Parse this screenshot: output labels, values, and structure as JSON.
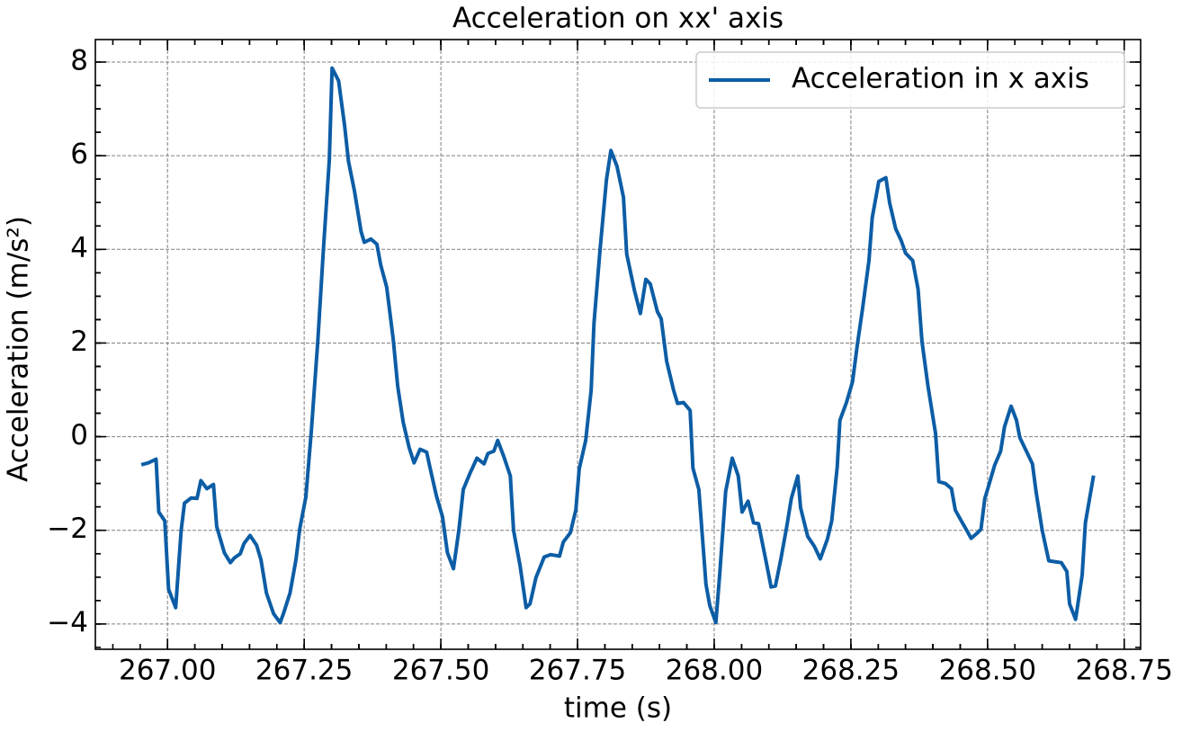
{
  "chart_data": {
    "type": "line",
    "title": "Acceleration on xx' axis",
    "x_label": "time (s)",
    "y_label": "Acceleration (m/s²)",
    "legend": "upper right",
    "grid": true,
    "xlim": [
      266.868,
      268.78
    ],
    "ylim": [
      -4.54,
      8.48
    ],
    "xticks": [
      {
        "value": 267,
        "label": "267.00"
      },
      267.25,
      {
        "value": 267.5,
        "label": "267.50"
      },
      267.75,
      {
        "value": 268,
        "label": "268.00"
      },
      268.25,
      {
        "value": 268.5,
        "label": "268.50"
      },
      268.75
    ],
    "yticks": [
      {
        "value": -4,
        "label": "−4"
      },
      {
        "value": -2,
        "label": "−2"
      },
      0,
      2,
      4,
      6,
      8
    ],
    "x": [
      266.952,
      266.965,
      266.979,
      266.984,
      266.995,
      267.002,
      267.015,
      267.025,
      267.031,
      267.043,
      267.054,
      267.061,
      267.072,
      267.084,
      267.09,
      267.104,
      267.115,
      267.122,
      267.133,
      267.14,
      267.151,
      267.163,
      267.171,
      267.181,
      267.194,
      267.206,
      267.212,
      267.224,
      267.235,
      267.242,
      267.253,
      267.263,
      267.275,
      267.285,
      267.296,
      267.301,
      267.313,
      267.324,
      267.331,
      267.342,
      267.354,
      267.36,
      267.372,
      267.383,
      267.39,
      267.401,
      267.413,
      267.421,
      267.431,
      267.442,
      267.451,
      267.462,
      267.474,
      267.48,
      267.492,
      267.503,
      267.512,
      267.523,
      267.533,
      267.541,
      267.553,
      267.566,
      267.579,
      267.586,
      267.597,
      267.604,
      267.615,
      267.627,
      267.633,
      267.645,
      267.656,
      267.663,
      267.674,
      267.689,
      267.701,
      267.717,
      267.724,
      267.737,
      267.747,
      267.753,
      267.765,
      267.775,
      267.78,
      267.791,
      267.803,
      267.811,
      267.822,
      267.829,
      267.834,
      267.84,
      267.854,
      267.865,
      267.875,
      267.883,
      267.896,
      267.903,
      267.913,
      267.926,
      267.933,
      267.944,
      267.956,
      267.961,
      267.972,
      267.985,
      267.992,
      268.003,
      268.01,
      268.021,
      268.033,
      268.044,
      268.051,
      268.062,
      268.072,
      268.081,
      268.095,
      268.104,
      268.112,
      268.122,
      268.133,
      268.141,
      268.153,
      268.158,
      268.171,
      268.183,
      268.194,
      268.207,
      268.215,
      268.225,
      268.23,
      268.242,
      268.253,
      268.262,
      268.271,
      268.283,
      268.289,
      268.301,
      268.314,
      268.321,
      268.332,
      268.342,
      268.35,
      268.363,
      268.373,
      268.38,
      268.391,
      268.405,
      268.411,
      268.423,
      268.434,
      268.441,
      268.452,
      268.462,
      268.47,
      268.48,
      268.488,
      268.495,
      268.5,
      268.513,
      268.524,
      268.531,
      268.543,
      268.553,
      268.559,
      268.571,
      268.582,
      268.589,
      268.6,
      268.612,
      268.623,
      268.635,
      268.645,
      268.65,
      268.661,
      268.673,
      268.679,
      268.694
    ],
    "series": [
      {
        "name": "Acceleration in x axis",
        "color": "#0c5da5",
        "values": [
          -0.6,
          -0.56,
          -0.48,
          -1.61,
          -1.8,
          -3.26,
          -3.65,
          -2.0,
          -1.42,
          -1.31,
          -1.32,
          -0.94,
          -1.11,
          -1.02,
          -1.92,
          -2.48,
          -2.69,
          -2.59,
          -2.5,
          -2.28,
          -2.11,
          -2.32,
          -2.63,
          -3.34,
          -3.78,
          -3.97,
          -3.78,
          -3.34,
          -2.63,
          -1.96,
          -1.29,
          0.12,
          2.07,
          3.96,
          5.91,
          7.87,
          7.6,
          6.64,
          5.88,
          5.24,
          4.38,
          4.15,
          4.22,
          4.11,
          3.67,
          3.19,
          2.07,
          1.08,
          0.31,
          -0.23,
          -0.56,
          -0.27,
          -0.33,
          -0.65,
          -1.27,
          -1.71,
          -2.48,
          -2.82,
          -2.0,
          -1.13,
          -0.79,
          -0.46,
          -0.58,
          -0.36,
          -0.31,
          -0.08,
          -0.42,
          -0.84,
          -2.0,
          -2.76,
          -3.65,
          -3.57,
          -3.01,
          -2.57,
          -2.52,
          -2.55,
          -2.25,
          -2.05,
          -1.56,
          -0.69,
          -0.08,
          1.0,
          2.42,
          3.96,
          5.49,
          6.11,
          5.78,
          5.4,
          5.11,
          3.9,
          3.13,
          2.63,
          3.36,
          3.26,
          2.67,
          2.52,
          1.61,
          0.98,
          0.71,
          0.73,
          0.56,
          -0.67,
          -1.13,
          -3.15,
          -3.61,
          -3.97,
          -2.96,
          -1.17,
          -0.46,
          -0.84,
          -1.61,
          -1.38,
          -1.84,
          -1.86,
          -2.67,
          -3.21,
          -3.19,
          -2.61,
          -1.9,
          -1.32,
          -0.84,
          -1.52,
          -2.13,
          -2.34,
          -2.61,
          -2.19,
          -1.8,
          -0.65,
          0.35,
          0.73,
          1.17,
          1.98,
          2.71,
          3.76,
          4.67,
          5.45,
          5.53,
          4.99,
          4.44,
          4.19,
          3.92,
          3.76,
          3.15,
          2.04,
          1.08,
          0.06,
          -0.96,
          -1.0,
          -1.11,
          -1.57,
          -1.8,
          -2.0,
          -2.17,
          -2.07,
          -1.98,
          -1.32,
          -1.13,
          -0.61,
          -0.31,
          0.21,
          0.65,
          0.35,
          -0.02,
          -0.31,
          -0.58,
          -1.19,
          -2.0,
          -2.65,
          -2.67,
          -2.69,
          -2.88,
          -3.57,
          -3.9,
          -2.96,
          -1.84,
          -0.83
        ]
      }
    ]
  }
}
